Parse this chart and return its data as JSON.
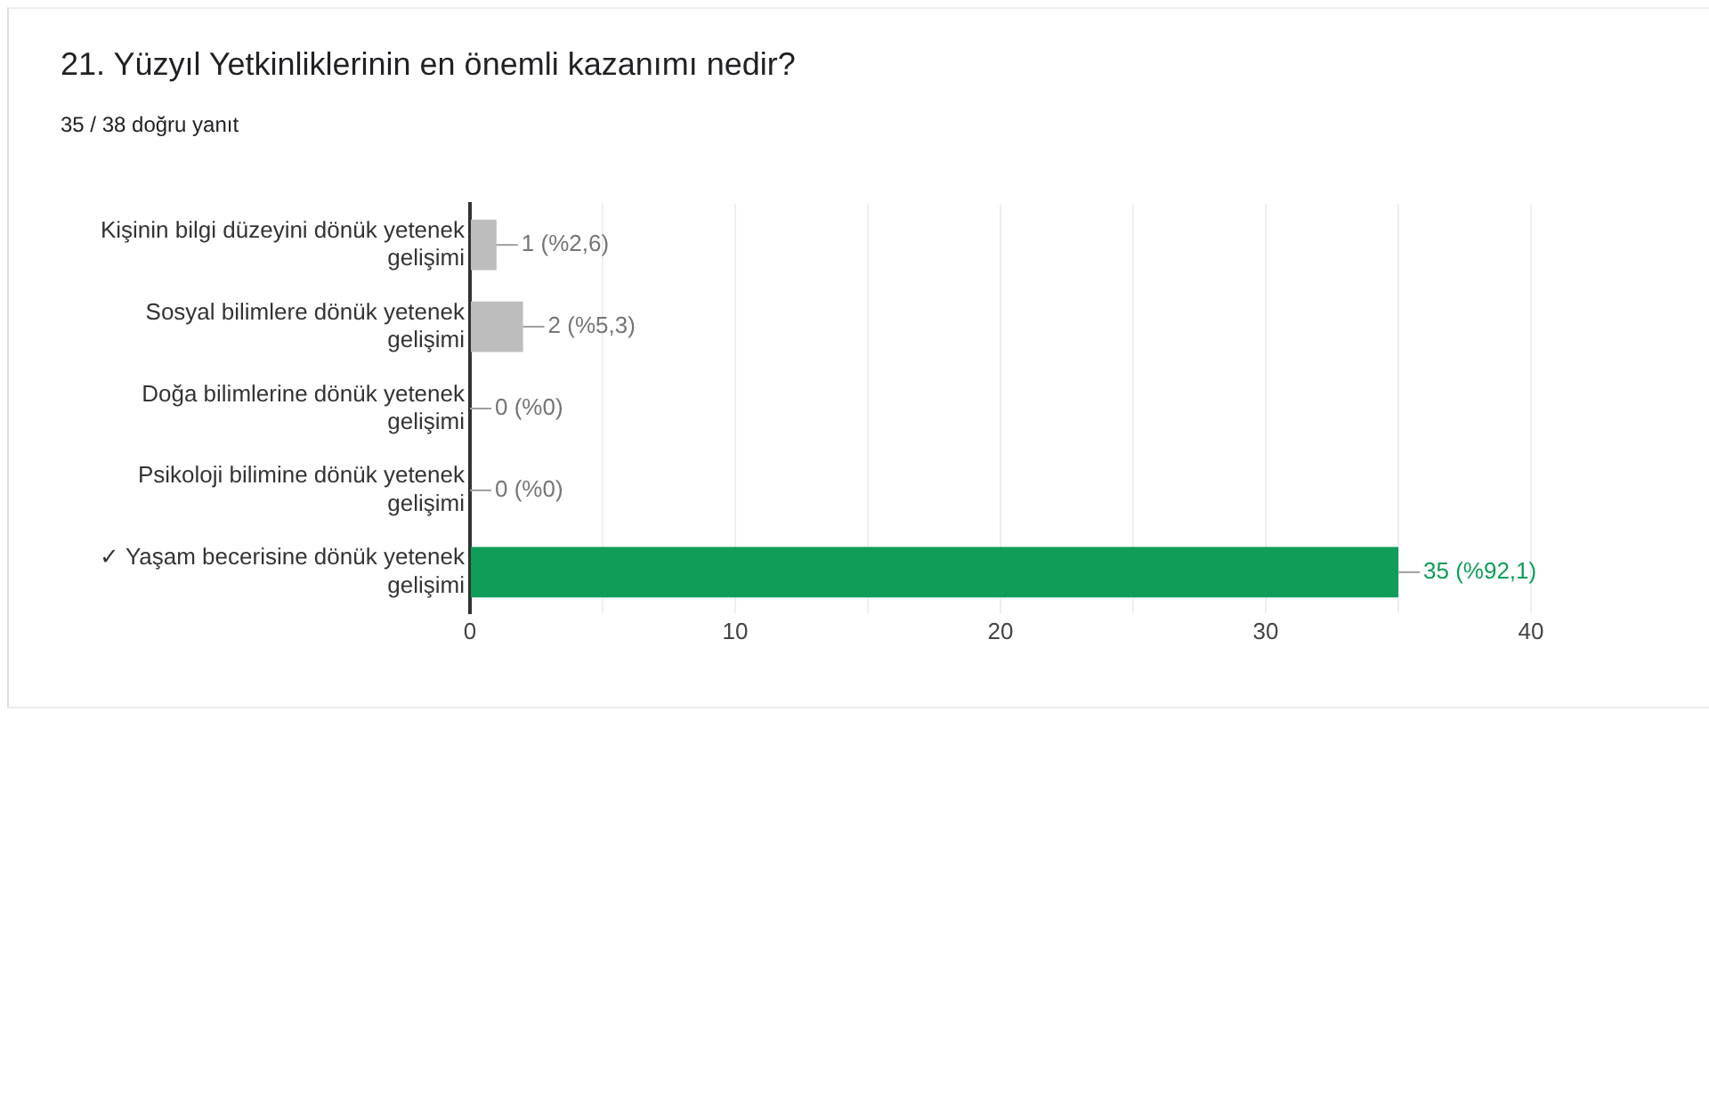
{
  "chart_data": {
    "type": "bar",
    "orientation": "horizontal",
    "title": "21. Yüzyıl Yetkinliklerinin en önemli kazanımı nedir?",
    "subtitle": "35 / 38 doğru yanıt",
    "categories": [
      "Kişinin bilgi düzeyini dönük yetenek gelişimi",
      "Sosyal bilimlere dönük yetenek gelişimi",
      "Doğa bilimlerine dönük yetenek gelişimi",
      "Psikoloji bilimine dönük yetenek gelişimi",
      "✓ Yaşam becerisine dönük yetenek gelişimi"
    ],
    "values": [
      1,
      2,
      0,
      0,
      35
    ],
    "colors": [
      "#bdbdbd",
      "#bdbdbd",
      "#bdbdbd",
      "#bdbdbd",
      "#0f9d58"
    ],
    "value_labels": [
      "1 (%2,6)",
      "2 (%5,3)",
      "0 (%0)",
      "0 (%0)",
      "35 (%92,1)"
    ],
    "xlim": [
      0,
      40
    ],
    "xticks": [
      0,
      {
        "value": 5,
        "label": null
      },
      10,
      {
        "value": 15,
        "label": null
      },
      20,
      {
        "value": 25,
        "label": null
      },
      30,
      {
        "value": 35,
        "label": null
      },
      40
    ],
    "grid": "x",
    "legend": false
  }
}
